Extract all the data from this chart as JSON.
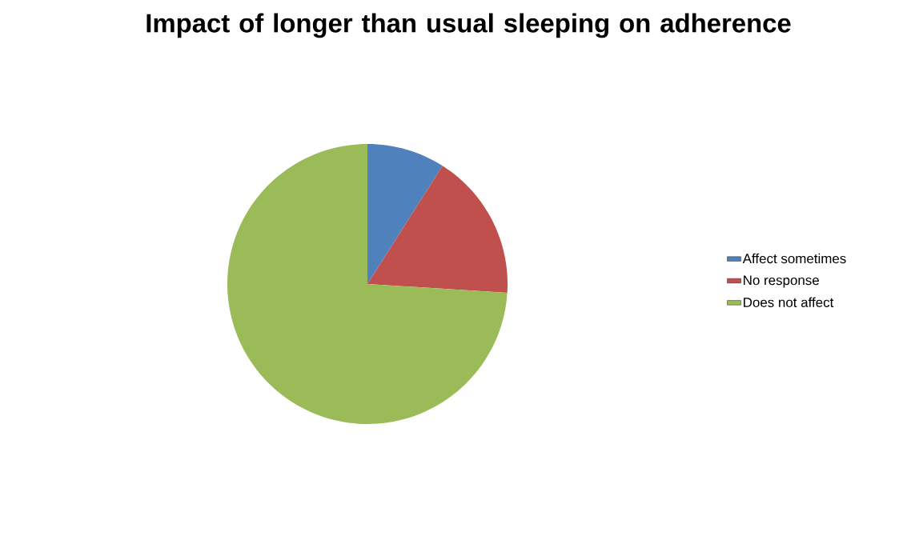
{
  "chart_data": {
    "type": "pie",
    "title": "Impact of longer than usual sleeping on adherence",
    "categories": [
      "Affect sometimes",
      "No response",
      "Does not affect"
    ],
    "values": [
      9,
      17,
      74
    ],
    "colors": [
      "#4f81bd",
      "#c0504d",
      "#9bbb59"
    ],
    "legend": "right"
  }
}
